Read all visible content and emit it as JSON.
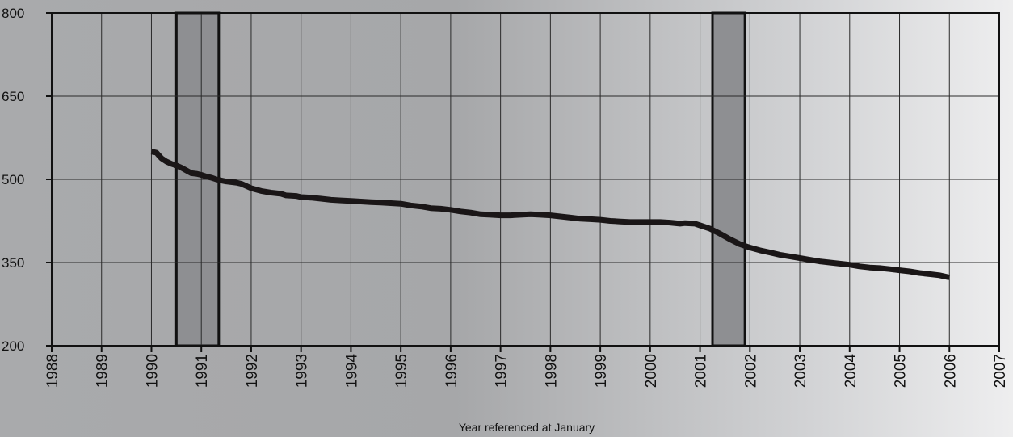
{
  "chart_data": {
    "type": "line",
    "title": "",
    "xlabel": "Year referenced at January",
    "ylabel": "",
    "xlim": [
      1988,
      2007
    ],
    "ylim": [
      200,
      800
    ],
    "x_ticks": [
      1988,
      1989,
      1990,
      1991,
      1992,
      1993,
      1994,
      1995,
      1996,
      1997,
      1998,
      1999,
      2000,
      2001,
      2002,
      2003,
      2004,
      2005,
      2006,
      2007
    ],
    "x_tick_labels": [
      "1988",
      "1989",
      "1990",
      "1991",
      "1992",
      "1993",
      "1994",
      "1995",
      "1996",
      "1997",
      "1998",
      "1999",
      "2000",
      "2001",
      "2002",
      "2003",
      "2004",
      "2005",
      "2006",
      "2007"
    ],
    "y_ticks": [
      200,
      350,
      500,
      650,
      800
    ],
    "y_tick_labels": [
      "200",
      "350",
      "500",
      "650",
      "800"
    ],
    "grid": true,
    "legend": "none",
    "shaded_periods": [
      {
        "start": 1990.5,
        "end": 1991.35
      },
      {
        "start": 2001.25,
        "end": 2001.9
      }
    ],
    "series": [
      {
        "x": [
          1990.0,
          1990.1,
          1990.2,
          1990.3,
          1990.4,
          1990.5,
          1990.6,
          1990.7,
          1990.8,
          1990.9,
          1991.0,
          1991.1,
          1991.2,
          1991.3,
          1991.4,
          1991.5,
          1991.6,
          1991.7,
          1991.8,
          1991.9,
          1992.0,
          1992.2,
          1992.4,
          1992.6,
          1992.7,
          1992.9,
          1993.0,
          1993.2,
          1993.4,
          1993.6,
          1993.8,
          1994.0,
          1994.2,
          1994.4,
          1994.6,
          1994.8,
          1995.0,
          1995.2,
          1995.4,
          1995.6,
          1995.8,
          1996.0,
          1996.2,
          1996.4,
          1996.6,
          1996.8,
          1997.0,
          1997.2,
          1997.4,
          1997.6,
          1997.8,
          1998.0,
          1998.2,
          1998.4,
          1998.6,
          1998.8,
          1999.0,
          1999.2,
          1999.4,
          1999.6,
          1999.8,
          2000.0,
          2000.2,
          2000.4,
          2000.6,
          2000.7,
          2000.9,
          2001.0,
          2001.2,
          2001.4,
          2001.6,
          2001.8,
          2002.0,
          2002.2,
          2002.4,
          2002.6,
          2002.8,
          2003.0,
          2003.2,
          2003.4,
          2003.6,
          2003.8,
          2004.0,
          2004.2,
          2004.4,
          2004.6,
          2004.8,
          2005.0,
          2005.2,
          2005.4,
          2005.6,
          2005.8,
          2006.0
        ],
        "y": [
          550,
          548,
          538,
          532,
          528,
          525,
          521,
          516,
          511,
          510,
          508,
          505,
          503,
          500,
          498,
          496,
          495,
          494,
          492,
          488,
          484,
          479,
          476,
          474,
          471,
          470,
          468,
          467,
          465,
          463,
          462,
          461,
          460,
          459,
          458,
          457,
          456,
          453,
          451,
          448,
          447,
          445,
          442,
          440,
          437,
          436,
          435,
          435,
          436,
          437,
          436,
          435,
          433,
          431,
          429,
          428,
          427,
          425,
          424,
          423,
          423,
          423,
          423,
          422,
          420,
          421,
          420,
          417,
          411,
          402,
          392,
          383,
          377,
          372,
          368,
          364,
          361,
          358,
          355,
          352,
          350,
          348,
          346,
          343,
          341,
          340,
          338,
          336,
          334,
          331,
          329,
          327,
          323
        ]
      }
    ]
  }
}
